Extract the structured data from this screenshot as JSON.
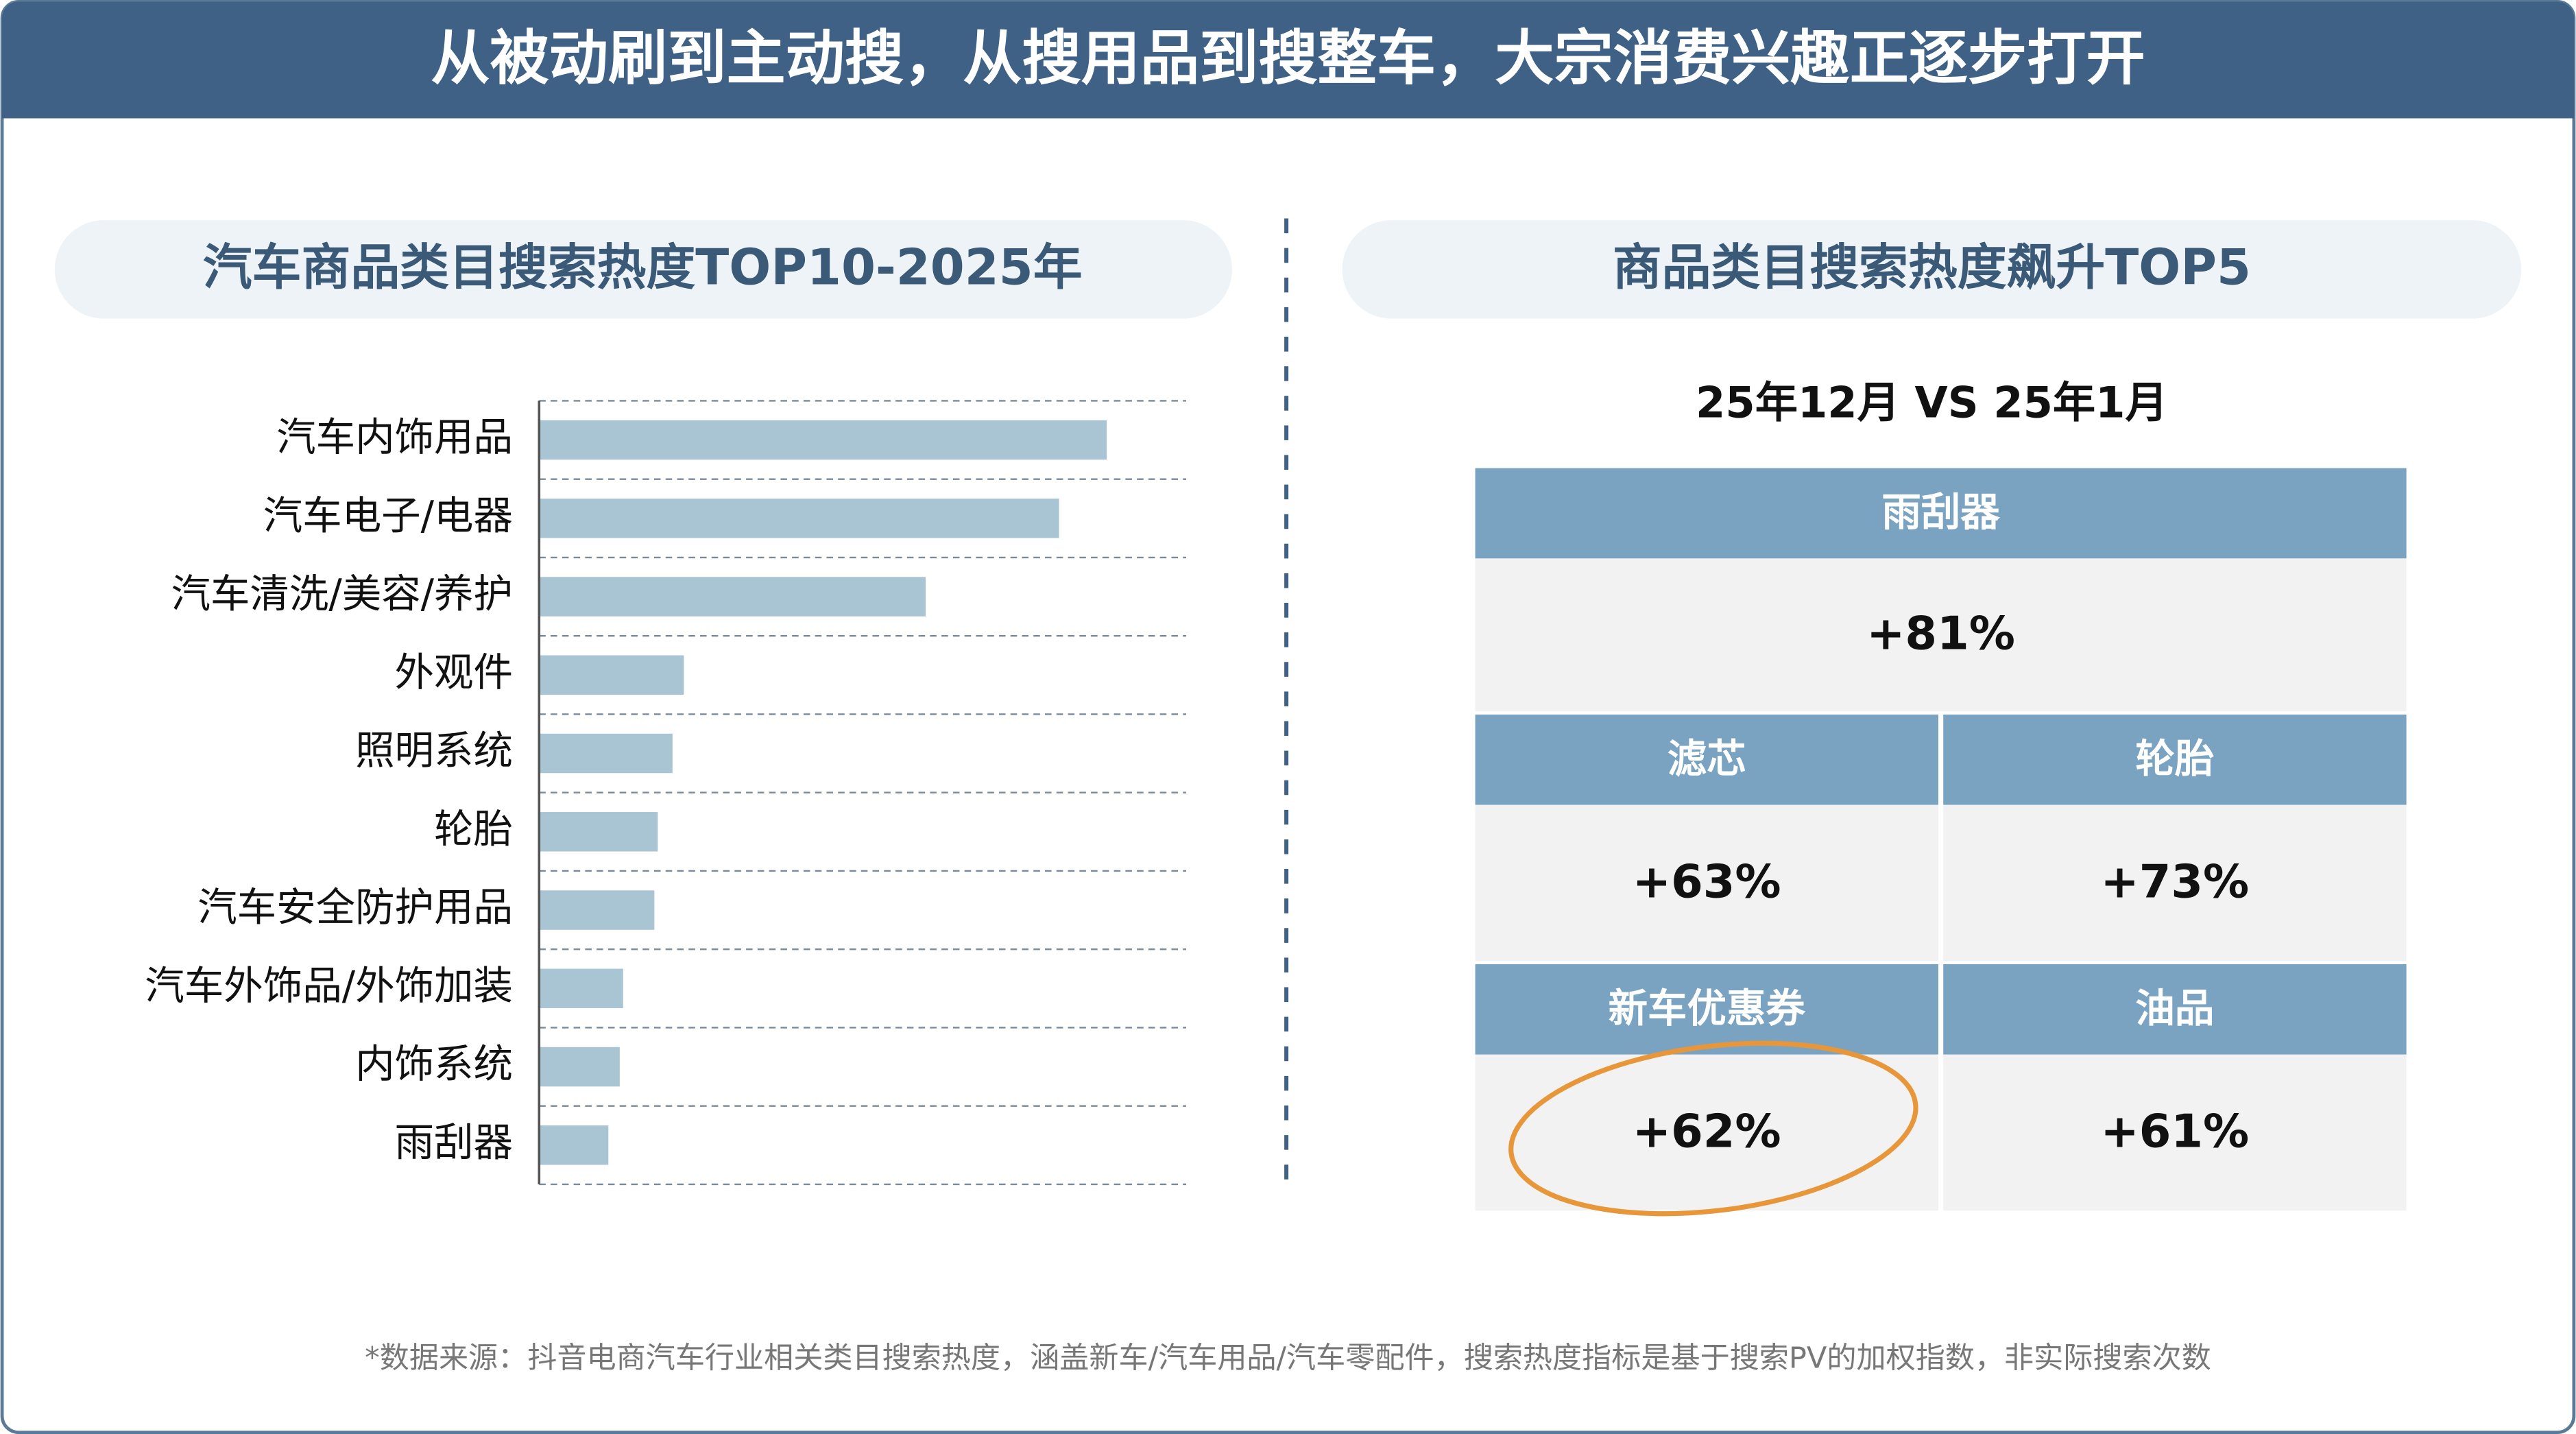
{
  "header": {
    "title": "从被动刷到主动搜，从搜用品到搜整车，大宗消费兴趣正逐步打开"
  },
  "chart_data": {
    "type": "hbar",
    "title": "汽车商品类目搜索热度TOP10-2025年",
    "categories": [
      "汽车内饰用品",
      "汽车电子/电器",
      "汽车清洗/美容/养护",
      "外观件",
      "照明系统",
      "轮胎",
      "汽车安全防护用品",
      "汽车外饰品/外饰加装",
      "内饰系统",
      "雨刮器"
    ],
    "values": [
      100,
      91.6,
      68.1,
      25.5,
      23.5,
      20.9,
      20.3,
      14.8,
      14.2,
      12.2
    ],
    "color": "#a9c5d3",
    "xlim": [
      0,
      114
    ]
  },
  "ranking": {
    "title": "商品类目搜索热度飙升TOP5",
    "subtitle": "25年12月 VS 25年1月",
    "cells": [
      {
        "header": "雨刮器",
        "value": "+81%"
      },
      {
        "header": "滤芯",
        "value": "+63%"
      },
      {
        "header": "轮胎",
        "value": "+73%"
      },
      {
        "header": "新车优惠券",
        "value": "+62%"
      },
      {
        "header": "油品",
        "value": "+61%"
      }
    ]
  },
  "footnote": "*数据来源：抖音电商汽车行业相关类目搜索热度，涵盖新车/汽车用品/汽车零配件，搜索热度指标是基于搜索PV的加权指数，非实际搜索次数"
}
